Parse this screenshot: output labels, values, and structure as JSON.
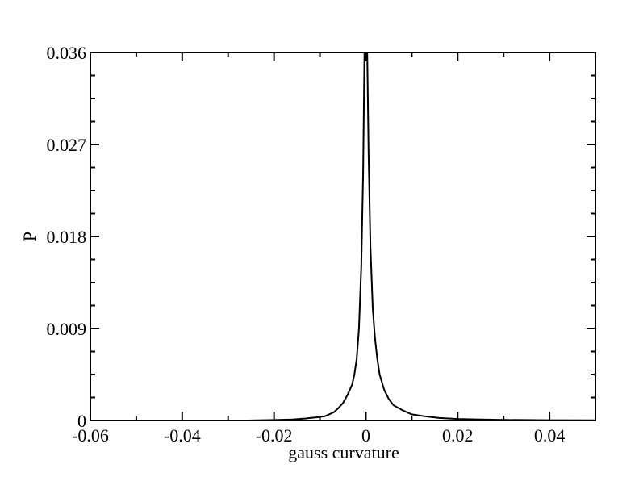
{
  "chart_data": {
    "type": "line",
    "title": "",
    "xlabel": "gauss curvature",
    "ylabel": "P",
    "xlim": [
      -0.06,
      0.05
    ],
    "ylim": [
      0,
      0.036
    ],
    "x_ticks": [
      "-0.06",
      "-0.04",
      "-0.02",
      "0",
      "0.02",
      "0.04"
    ],
    "y_ticks": [
      "0",
      "0.009",
      "0.018",
      "0.027",
      "0.036"
    ],
    "grid": false,
    "series": [
      {
        "values": [
          {
            "x": -0.026,
            "y": 0.0
          },
          {
            "x": -0.02,
            "y": 5e-05
          },
          {
            "x": -0.016,
            "y": 0.0001
          },
          {
            "x": -0.013,
            "y": 0.0002
          },
          {
            "x": -0.011,
            "y": 0.0003
          },
          {
            "x": -0.009,
            "y": 0.0004
          },
          {
            "x": -0.007,
            "y": 0.0008
          },
          {
            "x": -0.006,
            "y": 0.0012
          },
          {
            "x": -0.005,
            "y": 0.0017
          },
          {
            "x": -0.004,
            "y": 0.0025
          },
          {
            "x": -0.003,
            "y": 0.0035
          },
          {
            "x": -0.0025,
            "y": 0.0045
          },
          {
            "x": -0.002,
            "y": 0.006
          },
          {
            "x": -0.0015,
            "y": 0.009
          },
          {
            "x": -0.001,
            "y": 0.015
          },
          {
            "x": -0.0006,
            "y": 0.024
          },
          {
            "x": -0.0003,
            "y": 0.036
          },
          {
            "x": 0.0003,
            "y": 0.036
          },
          {
            "x": 0.0006,
            "y": 0.026
          },
          {
            "x": 0.001,
            "y": 0.017
          },
          {
            "x": 0.0015,
            "y": 0.011
          },
          {
            "x": 0.002,
            "y": 0.008
          },
          {
            "x": 0.0025,
            "y": 0.006
          },
          {
            "x": 0.003,
            "y": 0.0045
          },
          {
            "x": 0.004,
            "y": 0.003
          },
          {
            "x": 0.005,
            "y": 0.0021
          },
          {
            "x": 0.006,
            "y": 0.0015
          },
          {
            "x": 0.008,
            "y": 0.001
          },
          {
            "x": 0.01,
            "y": 0.0006
          },
          {
            "x": 0.013,
            "y": 0.0004
          },
          {
            "x": 0.016,
            "y": 0.00025
          },
          {
            "x": 0.02,
            "y": 0.00015
          },
          {
            "x": 0.025,
            "y": 0.0001
          },
          {
            "x": 0.03,
            "y": 6e-05
          },
          {
            "x": 0.04,
            "y": 3e-05
          },
          {
            "x": 0.05,
            "y": 2e-05
          }
        ]
      }
    ]
  }
}
